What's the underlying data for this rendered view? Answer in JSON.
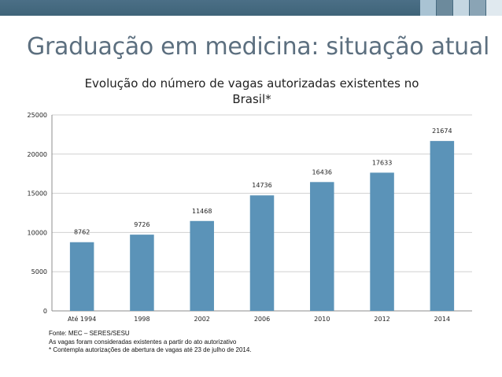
{
  "slide": {
    "title": "Graduação em medicina: situação atual",
    "accent_colors": [
      "#4b6f86",
      "#a9c3d3",
      "#6c8a9c",
      "#c4d6e1",
      "#8aa4b5",
      "#e0e9ef"
    ]
  },
  "chart_data": {
    "type": "bar",
    "title_lines": [
      "Evolução do número de vagas autorizadas existentes no",
      "Brasil*"
    ],
    "categories": [
      "Até 1994",
      "1998",
      "2002",
      "2006",
      "2010",
      "2012",
      "2014"
    ],
    "values": [
      8762,
      9726,
      11468,
      14736,
      16436,
      17633,
      21674
    ],
    "ylim": [
      0,
      25000
    ],
    "yticks": [
      0,
      5000,
      10000,
      15000,
      20000,
      25000
    ],
    "grid": true,
    "bar_color": "#5b93b8",
    "xlabel": "",
    "ylabel": ""
  },
  "footnotes": [
    "Fonte: MEC – SERES/SESU",
    "As vagas foram consideradas existentes a partir do ato autorizativo",
    "* Contempla autorizações de abertura de vagas até 23 de julho de 2014."
  ]
}
